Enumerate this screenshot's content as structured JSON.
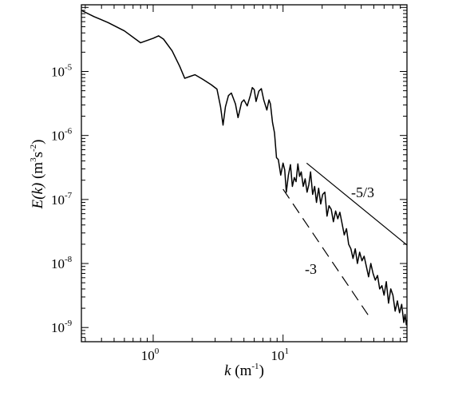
{
  "chart_data": {
    "type": "line",
    "title": "",
    "xlabel": {
      "var": "k",
      "unit_base": "m",
      "unit_exp": "-1"
    },
    "ylabel": {
      "var": "E(k)",
      "unit1_base": "m",
      "unit1_exp": "3",
      "unit2_base": "s",
      "unit2_exp": "-2"
    },
    "xscale": "log",
    "yscale": "log",
    "xlim": [
      0.28,
      90
    ],
    "ylim": [
      6e-10,
      0.00011
    ],
    "grid": false,
    "legend": "none",
    "x_ticks": [
      {
        "base": "10",
        "exp": "0",
        "value": 1
      },
      {
        "base": "10",
        "exp": "1",
        "value": 10
      }
    ],
    "y_ticks": [
      {
        "base": "10",
        "exp": "-9",
        "value": 1e-09
      },
      {
        "base": "10",
        "exp": "-8",
        "value": 1e-08
      },
      {
        "base": "10",
        "exp": "-7",
        "value": 1e-07
      },
      {
        "base": "10",
        "exp": "-6",
        "value": 1e-06
      },
      {
        "base": "10",
        "exp": "-5",
        "value": 1e-05
      }
    ],
    "series": [
      {
        "style": "solid-black",
        "points": [
          [
            0.28,
            9e-05
          ],
          [
            0.35,
            7.2e-05
          ],
          [
            0.45,
            5.8e-05
          ],
          [
            0.6,
            4.3e-05
          ],
          [
            0.8,
            2.8e-05
          ],
          [
            1.0,
            3.3e-05
          ],
          [
            1.1,
            3.6e-05
          ],
          [
            1.2,
            3.2e-05
          ],
          [
            1.4,
            2.1e-05
          ],
          [
            1.6,
            1.2e-05
          ],
          [
            1.75,
            7.8e-06
          ],
          [
            1.9,
            8.3e-06
          ],
          [
            2.1,
            8.9e-06
          ],
          [
            2.4,
            7.6e-06
          ],
          [
            2.8,
            6.2e-06
          ],
          [
            3.1,
            5.3e-06
          ],
          [
            3.3,
            2.8e-06
          ],
          [
            3.45,
            1.45e-06
          ],
          [
            3.6,
            2.8e-06
          ],
          [
            3.8,
            4.2e-06
          ],
          [
            4.0,
            4.6e-06
          ],
          [
            4.3,
            3.1e-06
          ],
          [
            4.5,
            1.9e-06
          ],
          [
            4.8,
            3.3e-06
          ],
          [
            5.0,
            3.6e-06
          ],
          [
            5.3,
            2.9e-06
          ],
          [
            5.6,
            4.2e-06
          ],
          [
            5.8,
            5.6e-06
          ],
          [
            6.0,
            5.2e-06
          ],
          [
            6.2,
            3.4e-06
          ],
          [
            6.5,
            4.9e-06
          ],
          [
            6.8,
            5.4e-06
          ],
          [
            7.1,
            3.6e-06
          ],
          [
            7.5,
            2.5e-06
          ],
          [
            7.8,
            3.6e-06
          ],
          [
            8.0,
            3.1e-06
          ],
          [
            8.3,
            1.6e-06
          ],
          [
            8.6,
            1.1e-06
          ],
          [
            8.9,
            4.5e-07
          ],
          [
            9.2,
            4.2e-07
          ],
          [
            9.6,
            2.4e-07
          ],
          [
            10.0,
            3.7e-07
          ],
          [
            10.3,
            2.9e-07
          ],
          [
            10.6,
            1.3e-07
          ],
          [
            11.0,
            2.4e-07
          ],
          [
            11.4,
            3.5e-07
          ],
          [
            11.8,
            1.6e-07
          ],
          [
            12.2,
            2.2e-07
          ],
          [
            12.6,
            1.9e-07
          ],
          [
            13.0,
            3.6e-07
          ],
          [
            13.4,
            2.3e-07
          ],
          [
            13.8,
            2.7e-07
          ],
          [
            14.3,
            1.6e-07
          ],
          [
            14.8,
            2.1e-07
          ],
          [
            15.3,
            1.3e-07
          ],
          [
            15.8,
            1.7e-07
          ],
          [
            16.3,
            2.7e-07
          ],
          [
            16.9,
            1.2e-07
          ],
          [
            17.5,
            1.6e-07
          ],
          [
            18.1,
            9e-08
          ],
          [
            18.8,
            1.5e-07
          ],
          [
            19.5,
            8.5e-08
          ],
          [
            20.2,
            1.2e-07
          ],
          [
            21.0,
            1.3e-07
          ],
          [
            21.8,
            5.5e-08
          ],
          [
            22.6,
            8e-08
          ],
          [
            23.5,
            7e-08
          ],
          [
            24.4,
            4.5e-08
          ],
          [
            25.4,
            6.6e-08
          ],
          [
            26.4,
            5e-08
          ],
          [
            27.4,
            6.3e-08
          ],
          [
            28.5,
            4.2e-08
          ],
          [
            29.6,
            2.8e-08
          ],
          [
            30.8,
            3.5e-08
          ],
          [
            32.0,
            2e-08
          ],
          [
            33.3,
            1.7e-08
          ],
          [
            34.6,
            1.2e-08
          ],
          [
            36.0,
            1.7e-08
          ],
          [
            37.4,
            1e-08
          ],
          [
            38.9,
            1.5e-08
          ],
          [
            40.5,
            1.1e-08
          ],
          [
            42.1,
            1.3e-08
          ],
          [
            43.8,
            9e-09
          ],
          [
            45.6,
            6.2e-09
          ],
          [
            47.4,
            1e-08
          ],
          [
            49.3,
            7e-09
          ],
          [
            51.3,
            5.5e-09
          ],
          [
            53.4,
            6.5e-09
          ],
          [
            55.5,
            4e-09
          ],
          [
            57.7,
            4.5e-09
          ],
          [
            60.0,
            3.2e-09
          ],
          [
            62.4,
            5.2e-09
          ],
          [
            64.9,
            2.4e-09
          ],
          [
            67.5,
            4e-09
          ],
          [
            70.2,
            3.2e-09
          ],
          [
            73.0,
            1.8e-09
          ],
          [
            75.9,
            2.6e-09
          ],
          [
            78.9,
            1.7e-09
          ],
          [
            82.0,
            2.3e-09
          ],
          [
            85.0,
            1.2e-09
          ],
          [
            87.0,
            1.6e-09
          ],
          [
            89.0,
            1.1e-09
          ],
          [
            90.0,
            1.3e-09
          ]
        ]
      }
    ],
    "reference_lines": [
      {
        "label": "-5/3",
        "style": "solid",
        "slope": -1.6667,
        "x": [
          15.2,
          90
        ],
        "y": [
          3.7e-07,
          1.94e-08
        ],
        "label_at": [
          45,
          9.5e-08
        ]
      },
      {
        "label": "-3",
        "style": "dashed",
        "slope": -3,
        "x": [
          10,
          48
        ],
        "y": [
          1.45e-07,
          1.31e-09
        ],
        "label_at": [
          20,
          5.2e-09
        ]
      }
    ]
  }
}
